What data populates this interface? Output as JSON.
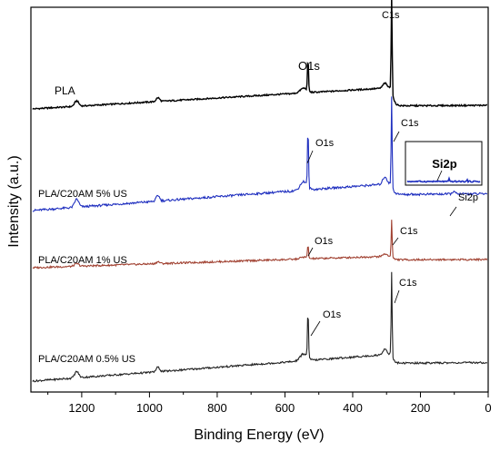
{
  "chart_data": {
    "type": "line",
    "title": "",
    "xlabel": "Binding Energy (eV)",
    "ylabel": "Intensity (a.u.)",
    "xlim": [
      1350,
      0
    ],
    "x_ticks": [
      1200,
      1000,
      800,
      600,
      400,
      200,
      0
    ],
    "x_reversed": true,
    "y_ticks_shown": false,
    "grid": false,
    "legend": "none",
    "series": [
      {
        "name": "PLA",
        "color": "#000000",
        "peaks": [
          {
            "label": "O1s",
            "energy": 532
          },
          {
            "label": "C1s",
            "energy": 285
          }
        ]
      },
      {
        "name": "PLA/C20AM 5% US",
        "color": "#1f2fbf",
        "peaks": [
          {
            "label": "O1s",
            "energy": 532
          },
          {
            "label": "C1s",
            "energy": 285
          },
          {
            "label": "Si2p",
            "energy": 102
          }
        ]
      },
      {
        "name": "PLA/C20AM 1% US",
        "color": "#a04030",
        "peaks": [
          {
            "label": "O1s",
            "energy": 532
          },
          {
            "label": "C1s",
            "energy": 285
          }
        ]
      },
      {
        "name": "PLA/C20AM 0.5% US",
        "color": "#222222",
        "peaks": [
          {
            "label": "O1s",
            "energy": 532
          },
          {
            "label": "C1s",
            "energy": 285
          }
        ]
      }
    ],
    "inset": {
      "label": "Si2p",
      "series": "PLA/C20AM 5% US"
    }
  }
}
